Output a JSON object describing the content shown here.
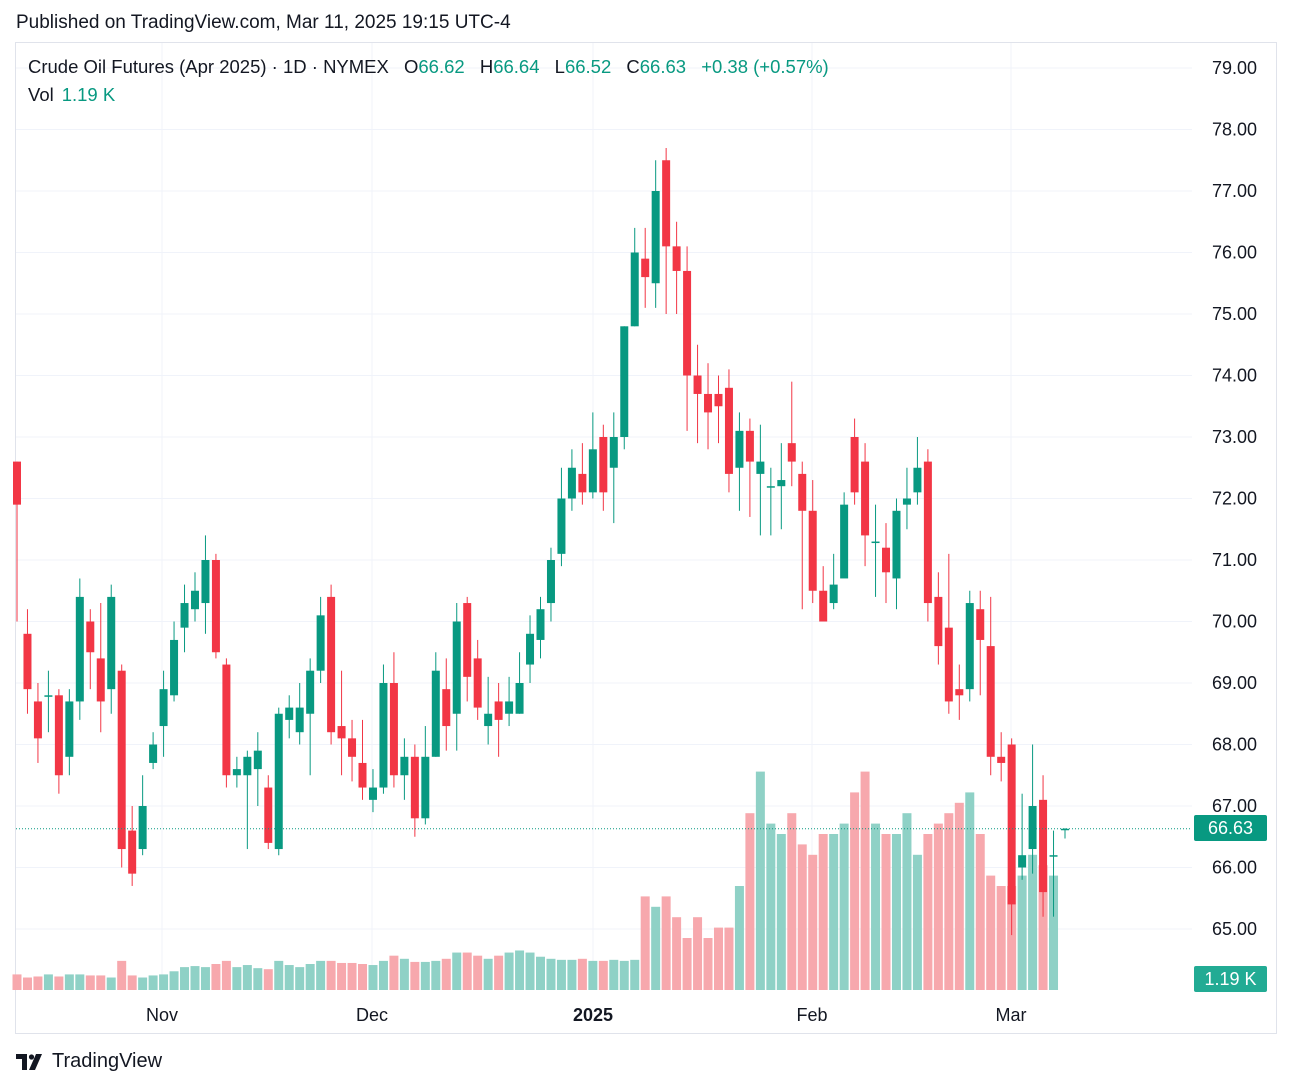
{
  "header": {
    "published": "Published on TradingView.com, Mar 11, 2025 19:15 UTC-4"
  },
  "legend": {
    "symbol": "Crude Oil Futures (Apr 2025) · 1D · NYMEX",
    "open_label": "O",
    "open": "66.62",
    "high_label": "H",
    "high": "66.64",
    "low_label": "L",
    "low": "66.52",
    "close_label": "C",
    "close": "66.63",
    "change": "+0.38 (+0.57%)",
    "vol_label": "Vol",
    "vol_value": "1.19 K"
  },
  "price_tag": "66.63",
  "volume_tag": "1.19 K",
  "branding": {
    "logo_text": "TradingView",
    "logo_icon": "tradingview-logo-icon"
  },
  "colors": {
    "up": "#089981",
    "down": "#f23645",
    "vol_up": "#8fd1c6",
    "vol_down": "#f7a8ad"
  },
  "chart_data": {
    "type": "candlestick",
    "title": "Crude Oil Futures (Apr 2025) · 1D · NYMEX",
    "y_axis": {
      "ticks": [
        "65.00",
        "66.00",
        "67.00",
        "68.00",
        "69.00",
        "70.00",
        "71.00",
        "72.00",
        "73.00",
        "74.00",
        "75.00",
        "76.00",
        "77.00",
        "78.00",
        "79.00"
      ],
      "ylim": [
        64.0,
        79.5
      ],
      "side": "right"
    },
    "x_axis": {
      "labels": [
        "Nov",
        "Dec",
        "2025",
        "Feb",
        "Mar"
      ]
    },
    "grid": true,
    "last_price": 66.63,
    "candles": [
      [
        72.6,
        71.9,
        72.6,
        70.0
      ],
      [
        69.8,
        68.9,
        70.2,
        68.5
      ],
      [
        68.7,
        68.1,
        69.0,
        67.7
      ],
      [
        68.8,
        68.8,
        69.2,
        68.2
      ],
      [
        68.8,
        67.5,
        68.9,
        67.2
      ],
      [
        67.8,
        68.7,
        68.9,
        67.5
      ],
      [
        68.7,
        70.4,
        70.7,
        68.4
      ],
      [
        70.0,
        69.5,
        70.2,
        68.9
      ],
      [
        69.4,
        68.7,
        70.3,
        68.2
      ],
      [
        68.9,
        70.4,
        70.6,
        68.5
      ],
      [
        69.2,
        66.3,
        69.3,
        66.0
      ],
      [
        66.6,
        65.9,
        67.0,
        65.7
      ],
      [
        66.3,
        67.0,
        67.5,
        66.2
      ],
      [
        67.7,
        68.0,
        68.2,
        67.6
      ],
      [
        68.3,
        68.9,
        69.2,
        67.8
      ],
      [
        68.8,
        69.7,
        70.0,
        68.7
      ],
      [
        69.9,
        70.3,
        70.6,
        69.5
      ],
      [
        70.2,
        70.5,
        70.8,
        70.0
      ],
      [
        70.3,
        71.0,
        71.4,
        69.8
      ],
      [
        71.0,
        69.5,
        71.1,
        69.4
      ],
      [
        69.3,
        67.5,
        69.4,
        67.3
      ],
      [
        67.5,
        67.6,
        67.8,
        67.3
      ],
      [
        67.5,
        67.8,
        67.9,
        66.3
      ],
      [
        67.6,
        67.9,
        68.2,
        67.0
      ],
      [
        67.3,
        66.4,
        67.5,
        66.3
      ],
      [
        66.3,
        68.5,
        68.6,
        66.2
      ],
      [
        68.4,
        68.6,
        68.8,
        68.1
      ],
      [
        68.2,
        68.6,
        69.0,
        68.0
      ],
      [
        68.5,
        69.2,
        69.4,
        67.5
      ],
      [
        69.2,
        70.1,
        70.4,
        69.0
      ],
      [
        70.4,
        68.2,
        70.6,
        68.0
      ],
      [
        68.3,
        68.1,
        69.2,
        67.5
      ],
      [
        68.1,
        67.8,
        68.4,
        67.4
      ],
      [
        67.7,
        67.3,
        68.4,
        67.1
      ],
      [
        67.1,
        67.3,
        67.6,
        66.9
      ],
      [
        67.3,
        69.0,
        69.3,
        67.2
      ],
      [
        69.0,
        67.5,
        69.5,
        67.3
      ],
      [
        67.5,
        67.8,
        68.1,
        67.1
      ],
      [
        67.8,
        66.8,
        68.0,
        66.5
      ],
      [
        66.8,
        67.8,
        68.3,
        66.7
      ],
      [
        67.8,
        69.2,
        69.5,
        67.8
      ],
      [
        68.9,
        68.3,
        69.4,
        67.9
      ],
      [
        68.5,
        70.0,
        70.3,
        67.9
      ],
      [
        70.3,
        69.1,
        70.4,
        68.7
      ],
      [
        69.4,
        68.6,
        69.7,
        68.4
      ],
      [
        68.3,
        68.5,
        69.1,
        68.0
      ],
      [
        68.7,
        68.4,
        69.0,
        67.8
      ],
      [
        68.5,
        68.7,
        69.1,
        68.3
      ],
      [
        68.5,
        69.0,
        69.5,
        68.5
      ],
      [
        69.3,
        69.8,
        70.1,
        69.0
      ],
      [
        69.7,
        70.2,
        70.4,
        69.4
      ],
      [
        70.3,
        71.0,
        71.2,
        70.0
      ],
      [
        71.1,
        72.0,
        72.5,
        70.9
      ],
      [
        72.0,
        72.5,
        72.8,
        71.8
      ],
      [
        72.4,
        72.1,
        72.9,
        71.9
      ],
      [
        72.1,
        72.8,
        73.4,
        72.0
      ],
      [
        73.0,
        72.1,
        73.2,
        71.8
      ],
      [
        72.5,
        73.0,
        73.4,
        71.6
      ],
      [
        73.0,
        74.8,
        74.8,
        72.8
      ],
      [
        74.8,
        76.0,
        76.4,
        74.8
      ],
      [
        75.9,
        75.6,
        76.4,
        75.1
      ],
      [
        75.5,
        77.0,
        77.5,
        75.1
      ],
      [
        77.5,
        76.1,
        77.7,
        75.0
      ],
      [
        76.1,
        75.7,
        76.5,
        75.0
      ],
      [
        75.7,
        74.0,
        76.1,
        73.1
      ],
      [
        74.0,
        73.7,
        74.5,
        72.9
      ],
      [
        73.7,
        73.4,
        74.2,
        72.8
      ],
      [
        73.7,
        73.5,
        74.0,
        72.9
      ],
      [
        73.8,
        72.4,
        74.1,
        72.1
      ],
      [
        72.5,
        73.1,
        73.4,
        71.8
      ],
      [
        73.1,
        72.6,
        73.3,
        71.7
      ],
      [
        72.4,
        72.6,
        73.2,
        71.4
      ],
      [
        72.2,
        72.2,
        72.5,
        71.4
      ],
      [
        72.2,
        72.3,
        72.9,
        71.5
      ],
      [
        72.9,
        72.6,
        73.9,
        72.2
      ],
      [
        72.4,
        71.8,
        72.6,
        70.2
      ],
      [
        71.8,
        70.5,
        72.3,
        70.3
      ],
      [
        70.5,
        70.0,
        70.9,
        70.2
      ],
      [
        70.3,
        70.6,
        71.1,
        70.2
      ],
      [
        70.7,
        71.9,
        72.1,
        70.8
      ],
      [
        73.0,
        72.1,
        73.3,
        71.9
      ],
      [
        72.6,
        71.4,
        72.9,
        70.9
      ],
      [
        71.3,
        71.3,
        71.9,
        70.4
      ],
      [
        71.2,
        70.8,
        71.6,
        70.3
      ],
      [
        70.7,
        71.8,
        72.0,
        70.2
      ],
      [
        71.9,
        72.0,
        72.5,
        71.5
      ],
      [
        72.1,
        72.5,
        73.0,
        71.9
      ],
      [
        72.6,
        70.3,
        72.8,
        70.0
      ],
      [
        70.4,
        69.6,
        70.8,
        69.3
      ],
      [
        69.9,
        68.7,
        71.1,
        68.5
      ],
      [
        68.9,
        68.8,
        69.3,
        68.4
      ],
      [
        68.9,
        70.3,
        70.5,
        68.7
      ],
      [
        70.2,
        69.7,
        70.5,
        68.8
      ],
      [
        69.6,
        67.8,
        70.4,
        67.5
      ],
      [
        67.8,
        67.7,
        68.2,
        67.4
      ],
      [
        68.0,
        65.4,
        68.1,
        64.9
      ],
      [
        66.0,
        66.2,
        67.2,
        65.8
      ],
      [
        66.3,
        67.0,
        68.0,
        65.9
      ],
      [
        67.1,
        65.6,
        67.5,
        65.2
      ],
      [
        66.2,
        66.2,
        66.6,
        65.2
      ]
    ],
    "last_candle": {
      "o": 66.62,
      "h": 66.64,
      "l": 66.52,
      "c": 66.63
    },
    "volume_unit": "K",
    "volumes": [
      0.3,
      0.24,
      0.26,
      0.3,
      0.26,
      0.3,
      0.3,
      0.28,
      0.28,
      0.24,
      0.56,
      0.28,
      0.24,
      0.28,
      0.3,
      0.36,
      0.44,
      0.46,
      0.44,
      0.5,
      0.56,
      0.44,
      0.48,
      0.42,
      0.4,
      0.56,
      0.48,
      0.44,
      0.5,
      0.56,
      0.56,
      0.52,
      0.52,
      0.5,
      0.48,
      0.56,
      0.66,
      0.6,
      0.54,
      0.54,
      0.56,
      0.6,
      0.72,
      0.72,
      0.66,
      0.6,
      0.66,
      0.72,
      0.76,
      0.72,
      0.64,
      0.6,
      0.58,
      0.58,
      0.6,
      0.56,
      0.56,
      0.58,
      0.56,
      0.58,
      1.8,
      1.6,
      1.8,
      1.4,
      1.0,
      1.4,
      1.0,
      1.2,
      1.2,
      2.0,
      3.4,
      4.2,
      3.2,
      3.0,
      3.4,
      2.8,
      2.6,
      3.0,
      3.0,
      3.2,
      3.8,
      4.2,
      3.2,
      3.0,
      3.0,
      3.4,
      2.6,
      3.0,
      3.2,
      3.4,
      3.6,
      3.8,
      3.0,
      2.2,
      2.0,
      2.0,
      2.2,
      2.6,
      2.4,
      2.2
    ]
  }
}
